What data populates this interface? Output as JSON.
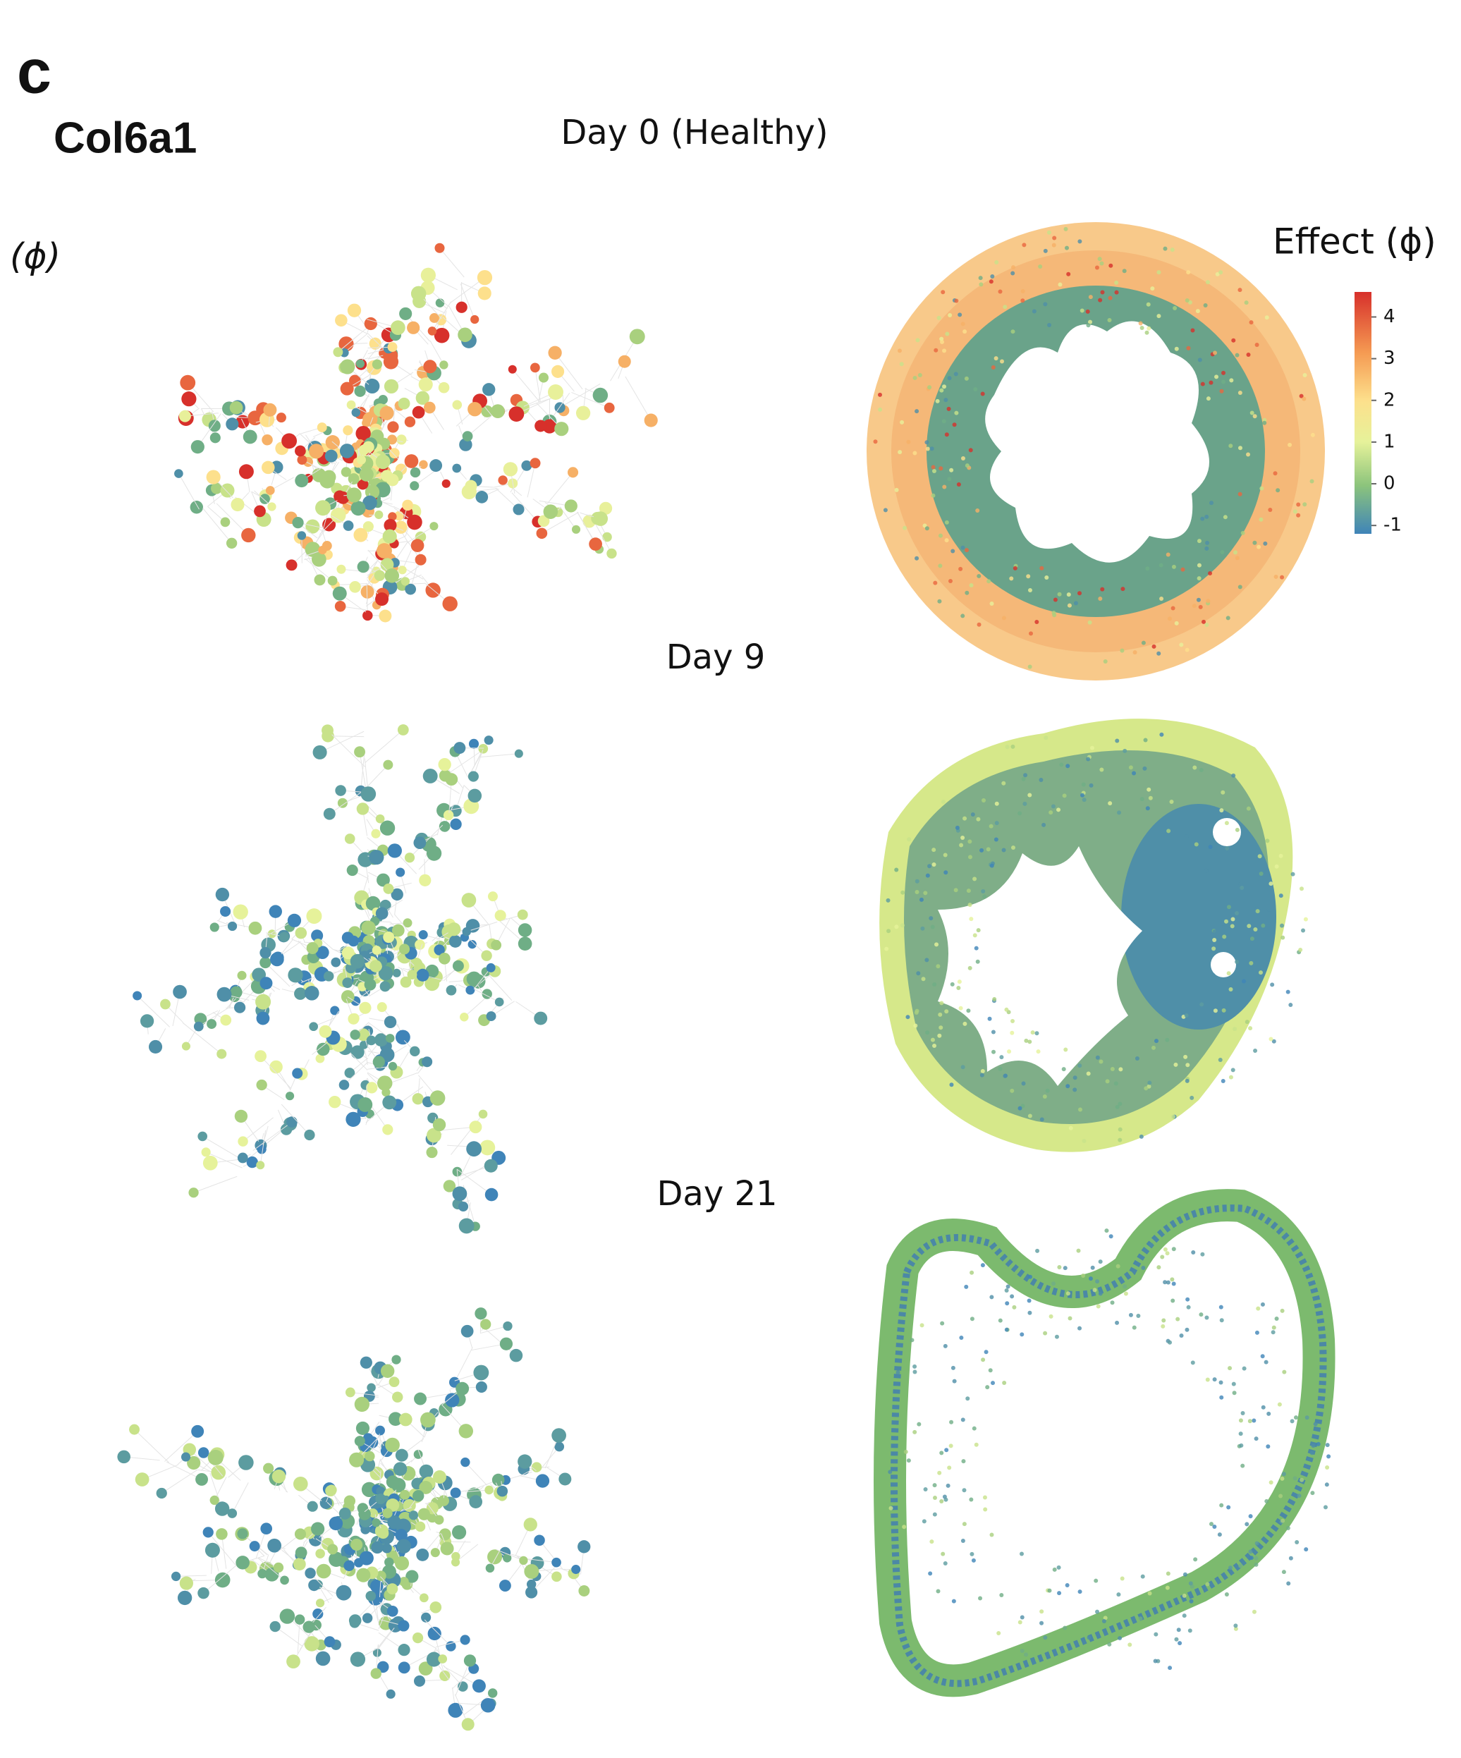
{
  "panel_label": "c",
  "gene": "Col6a1",
  "side_label": "(ϕ)",
  "panels": [
    {
      "title": "Day 0 (Healthy)"
    },
    {
      "title": "Day 9"
    },
    {
      "title": "Day 21"
    }
  ],
  "colorbar": {
    "title": "Effect (ϕ)",
    "ylim": [
      -1.2,
      4.6
    ],
    "yticks": [
      4,
      3,
      2,
      1,
      0,
      -1
    ]
  }
}
